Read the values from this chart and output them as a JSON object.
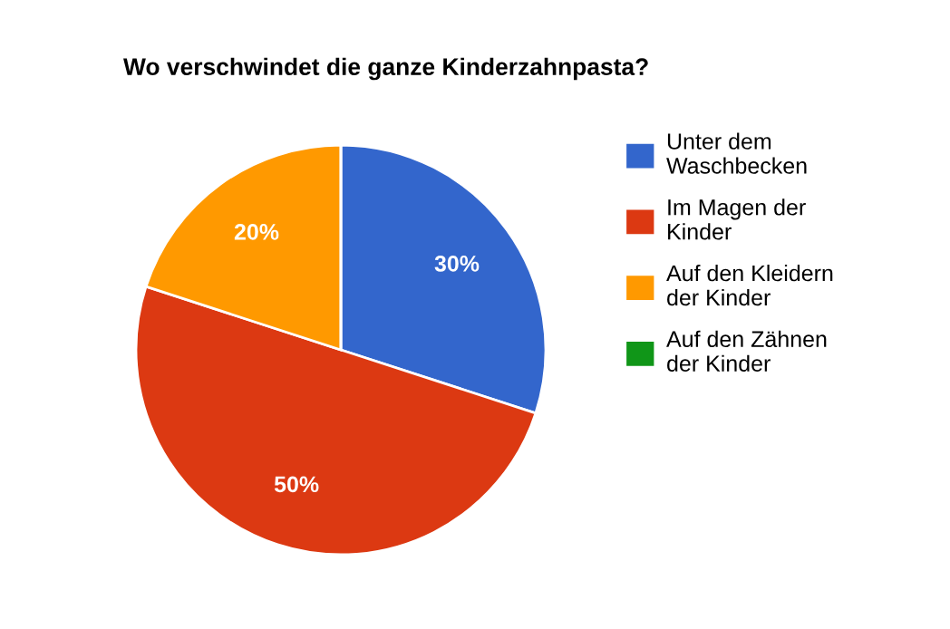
{
  "chart_data": {
    "type": "pie",
    "title": "Wo verschwindet die ganze Kinderzahnpasta?",
    "categories": [
      "Unter dem Waschbecken",
      "Im Magen der Kinder",
      "Auf den Kleidern der Kinder",
      "Auf den Zähnen der Kinder"
    ],
    "values": [
      30,
      50,
      20,
      0
    ],
    "colors": [
      "#3366cc",
      "#dc3912",
      "#ff9900",
      "#109618"
    ],
    "value_labels": [
      "30%",
      "50%",
      "20%",
      null
    ],
    "legend": "right"
  }
}
